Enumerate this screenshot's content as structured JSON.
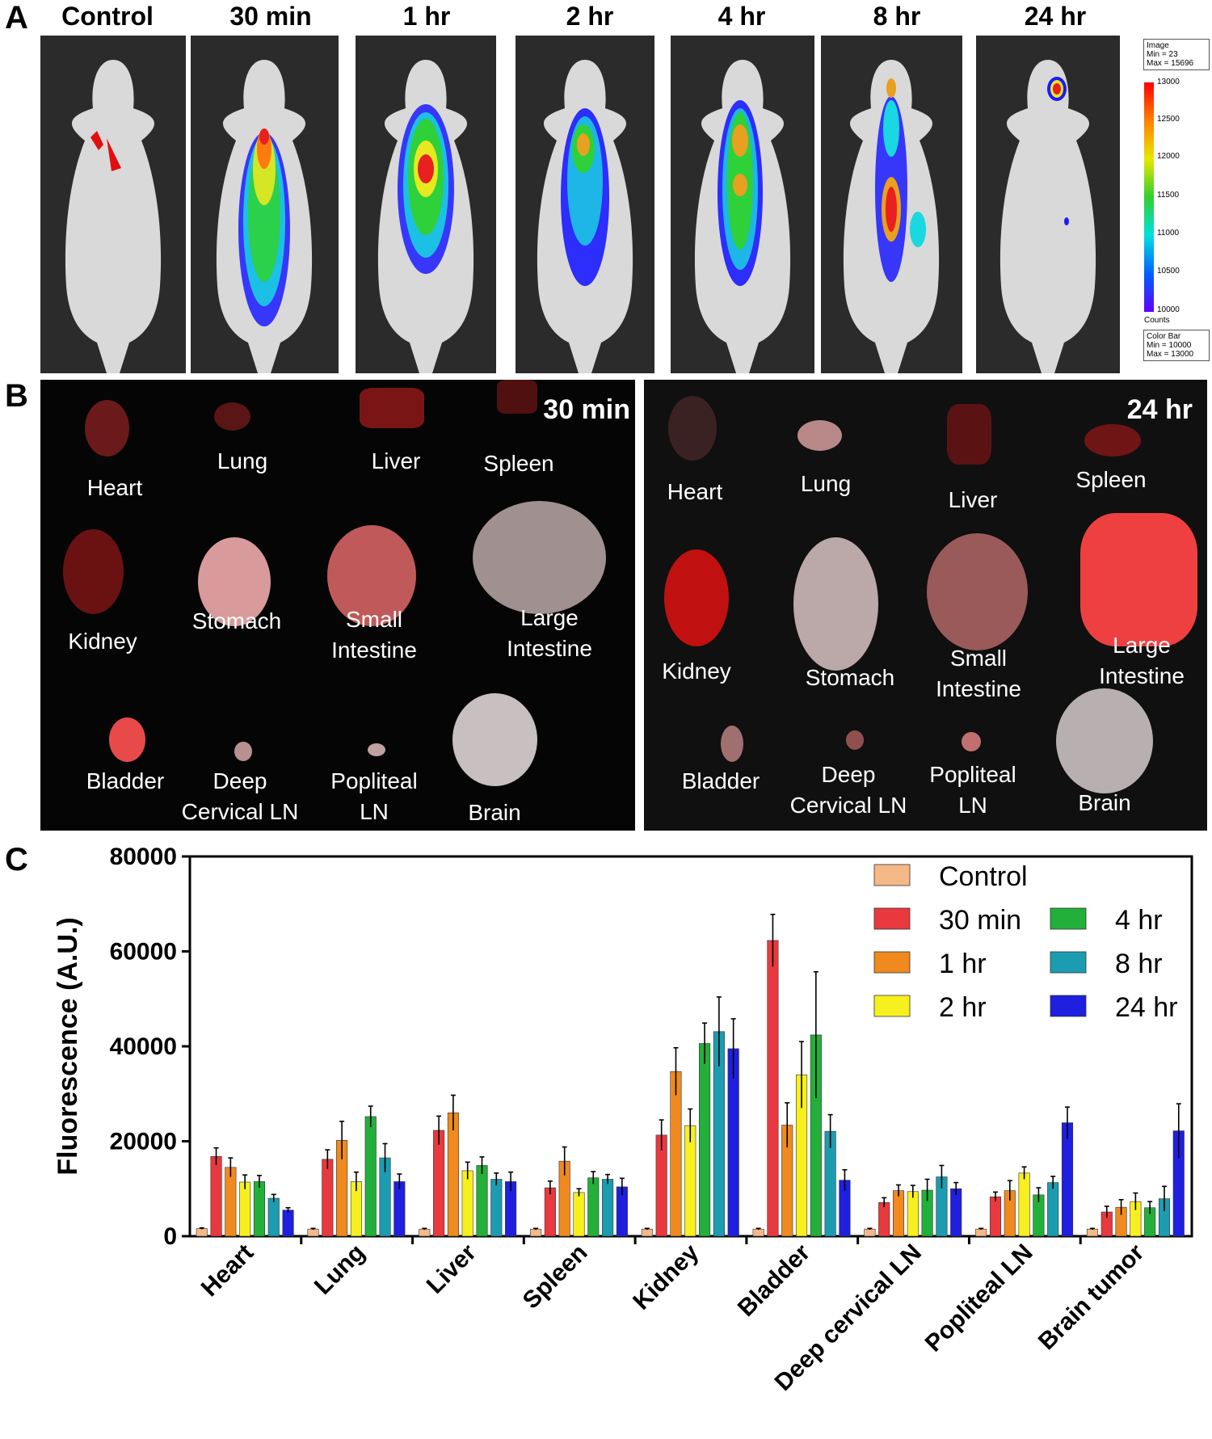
{
  "panel_letters": {
    "a": "A",
    "b": "B",
    "c": "C"
  },
  "panel_a": {
    "timepoints": [
      "Control",
      "30 min",
      "1 hr",
      "2 hr",
      "4 hr",
      "8 hr",
      "24 hr"
    ],
    "image_legend": {
      "title": "Image",
      "min": "Min = 23",
      "max": "Max = 15696"
    },
    "colorbar": {
      "ticks": [
        "13000",
        "12500",
        "12000",
        "11500",
        "11000",
        "10500",
        "10000"
      ],
      "unit": "Counts",
      "legend_title": "Color Bar",
      "legend_min": "Min = 10000",
      "legend_max": "Max = 13000"
    }
  },
  "panel_b": {
    "left": {
      "time": "30 min",
      "labels": [
        "Heart",
        "Lung",
        "Liver",
        "Spleen",
        "Kidney",
        "Stomach",
        "Small\nIntestine",
        "Large\nIntestine",
        "Bladder",
        "Deep\nCervical LN",
        "Popliteal\nLN",
        "Brain"
      ]
    },
    "right": {
      "time": "24 hr",
      "labels": [
        "Heart",
        "Lung",
        "Liver",
        "Spleen",
        "Kidney",
        "Stomach",
        "Small\nIntestine",
        "Large\nIntestine",
        "Bladder",
        "Deep\nCervical LN",
        "Popliteal\nLN",
        "Brain"
      ]
    }
  },
  "chart_data": {
    "type": "bar",
    "title": "",
    "xlabel": "",
    "ylabel": "Fluorescence (A.U.)",
    "ylim": [
      0,
      80000
    ],
    "yticks": [
      0,
      20000,
      40000,
      60000,
      80000
    ],
    "categories": [
      "Heart",
      "Lung",
      "Liver",
      "Spleen",
      "Kidney",
      "Bladder",
      "Deep cervical LN",
      "Popliteal LN",
      "Brain tumor"
    ],
    "series": [
      {
        "name": "Control",
        "color": "#f5b887",
        "values": [
          1600,
          1500,
          1500,
          1500,
          1500,
          1500,
          1500,
          1500,
          1500
        ],
        "errors": [
          150,
          150,
          150,
          150,
          150,
          150,
          150,
          150,
          150
        ]
      },
      {
        "name": "30 min",
        "color": "#e8393f",
        "values": [
          16800,
          16200,
          22300,
          10200,
          21300,
          62300,
          7100,
          8300,
          5100
        ],
        "errors": [
          1800,
          2000,
          3000,
          1400,
          3200,
          5500,
          1000,
          1000,
          1200
        ]
      },
      {
        "name": "1 hr",
        "color": "#f08a1e",
        "values": [
          14500,
          20200,
          26000,
          15800,
          34700,
          23400,
          9600,
          9600,
          6100
        ],
        "errors": [
          2000,
          4000,
          3700,
          3000,
          5000,
          4700,
          1200,
          2100,
          1600
        ]
      },
      {
        "name": "2 hr",
        "color": "#f7f01e",
        "values": [
          11400,
          11500,
          13800,
          9200,
          23300,
          34000,
          9400,
          13300,
          7300
        ],
        "errors": [
          1500,
          2000,
          1800,
          800,
          3500,
          7000,
          1300,
          1300,
          1800
        ]
      },
      {
        "name": "4 hr",
        "color": "#22b03a",
        "values": [
          11500,
          25200,
          14900,
          12300,
          40600,
          42400,
          9700,
          8700,
          6000
        ],
        "errors": [
          1300,
          2200,
          1800,
          1300,
          4300,
          13300,
          2300,
          1500,
          1300
        ]
      },
      {
        "name": "8 hr",
        "color": "#1b9cb0",
        "values": [
          8000,
          16500,
          12000,
          12000,
          43100,
          22100,
          12500,
          11300,
          7900
        ],
        "errors": [
          800,
          3000,
          1300,
          1000,
          7300,
          3500,
          2400,
          1300,
          2600
        ]
      },
      {
        "name": "24 hr",
        "color": "#1f1fe0",
        "values": [
          5500,
          11500,
          11500,
          10400,
          39500,
          11800,
          10000,
          23900,
          22200
        ],
        "errors": [
          500,
          1600,
          2000,
          1800,
          6300,
          2200,
          1300,
          3300,
          5700
        ]
      }
    ]
  }
}
